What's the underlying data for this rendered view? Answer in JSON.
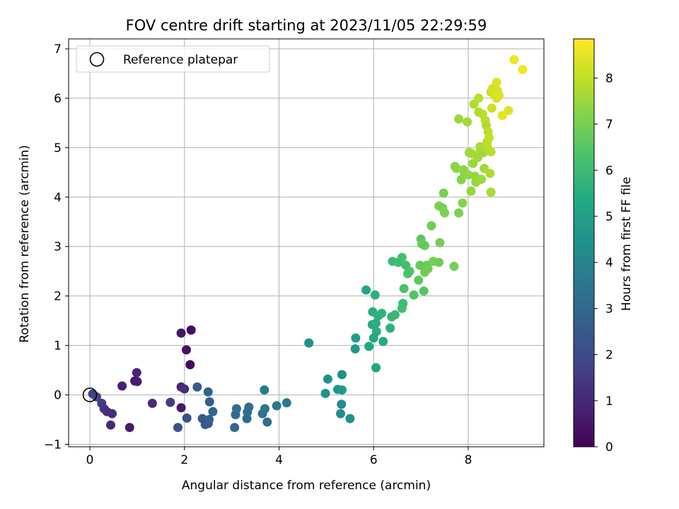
{
  "chart_data": {
    "type": "scatter",
    "title": "FOV centre drift starting at 2023/11/05 22:29:59",
    "xlabel": "Angular distance from reference (arcmin)",
    "ylabel": "Rotation from reference (arcmin)",
    "xlim": [
      -0.45,
      9.6
    ],
    "ylim": [
      -1.05,
      7.2
    ],
    "xticks": [
      0,
      2,
      4,
      6,
      8
    ],
    "yticks": [
      -1,
      0,
      1,
      2,
      3,
      4,
      5,
      6,
      7
    ],
    "grid": true,
    "legend": {
      "position": "top-left",
      "entries": [
        {
          "label": "Reference platepar",
          "marker": "open-circle"
        }
      ]
    },
    "reference_point": {
      "x": 0,
      "y": 0
    },
    "colorbar": {
      "label": "Hours from first FF file",
      "colormap": "viridis",
      "range": [
        0,
        8.85
      ],
      "ticks": [
        0,
        1,
        2,
        3,
        4,
        5,
        6,
        7,
        8
      ]
    },
    "points": [
      {
        "x": 0.06,
        "y": 0.02,
        "c": 1.6
      },
      {
        "x": 0.14,
        "y": -0.04,
        "c": 1.8
      },
      {
        "x": 0.25,
        "y": -0.17,
        "c": 1.5
      },
      {
        "x": 0.3,
        "y": -0.28,
        "c": 1.4
      },
      {
        "x": 0.36,
        "y": -0.34,
        "c": 1.2
      },
      {
        "x": 0.47,
        "y": -0.38,
        "c": 1.1
      },
      {
        "x": 0.44,
        "y": -0.61,
        "c": 1.0
      },
      {
        "x": 0.68,
        "y": 0.18,
        "c": 0.8
      },
      {
        "x": 0.95,
        "y": 0.28,
        "c": 0.6
      },
      {
        "x": 1.0,
        "y": 0.27,
        "c": 0.7
      },
      {
        "x": 0.99,
        "y": 0.45,
        "c": 0.9
      },
      {
        "x": 0.84,
        "y": -0.66,
        "c": 0.7
      },
      {
        "x": 1.32,
        "y": -0.17,
        "c": 1.1
      },
      {
        "x": 1.7,
        "y": -0.15,
        "c": 1.6
      },
      {
        "x": 1.93,
        "y": -0.26,
        "c": 0.6
      },
      {
        "x": 1.93,
        "y": 0.16,
        "c": 0.9
      },
      {
        "x": 2.0,
        "y": 0.12,
        "c": 1.2
      },
      {
        "x": 1.93,
        "y": 1.25,
        "c": 0.5
      },
      {
        "x": 2.14,
        "y": 1.31,
        "c": 0.3
      },
      {
        "x": 2.04,
        "y": 0.91,
        "c": 0.4
      },
      {
        "x": 2.12,
        "y": 0.61,
        "c": 0.2
      },
      {
        "x": 1.86,
        "y": -0.66,
        "c": 2.2
      },
      {
        "x": 2.05,
        "y": -0.47,
        "c": 2.3
      },
      {
        "x": 2.27,
        "y": 0.16,
        "c": 2.6
      },
      {
        "x": 2.38,
        "y": -0.48,
        "c": 2.4
      },
      {
        "x": 2.46,
        "y": -0.52,
        "c": 2.5
      },
      {
        "x": 2.44,
        "y": -0.6,
        "c": 2.3
      },
      {
        "x": 2.5,
        "y": -0.58,
        "c": 2.4
      },
      {
        "x": 2.52,
        "y": -0.5,
        "c": 2.7
      },
      {
        "x": 2.5,
        "y": 0.06,
        "c": 2.8
      },
      {
        "x": 2.53,
        "y": -0.14,
        "c": 2.6
      },
      {
        "x": 2.6,
        "y": -0.34,
        "c": 2.9
      },
      {
        "x": 3.06,
        "y": -0.66,
        "c": 2.9
      },
      {
        "x": 3.08,
        "y": -0.4,
        "c": 3.0
      },
      {
        "x": 3.1,
        "y": -0.28,
        "c": 3.2
      },
      {
        "x": 3.32,
        "y": -0.48,
        "c": 3.0
      },
      {
        "x": 3.33,
        "y": -0.35,
        "c": 3.3
      },
      {
        "x": 3.36,
        "y": -0.25,
        "c": 3.1
      },
      {
        "x": 3.65,
        "y": -0.38,
        "c": 3.4
      },
      {
        "x": 3.7,
        "y": -0.28,
        "c": 3.5
      },
      {
        "x": 3.75,
        "y": -0.55,
        "c": 3.2
      },
      {
        "x": 3.69,
        "y": 0.1,
        "c": 3.6
      },
      {
        "x": 3.95,
        "y": -0.22,
        "c": 3.5
      },
      {
        "x": 4.16,
        "y": -0.16,
        "c": 3.6
      },
      {
        "x": 4.63,
        "y": 1.05,
        "c": 4.4
      },
      {
        "x": 4.98,
        "y": 0.03,
        "c": 4.5
      },
      {
        "x": 5.03,
        "y": 0.32,
        "c": 4.4
      },
      {
        "x": 5.24,
        "y": 0.11,
        "c": 4.6
      },
      {
        "x": 5.33,
        "y": 0.1,
        "c": 4.7
      },
      {
        "x": 5.33,
        "y": 0.41,
        "c": 4.4
      },
      {
        "x": 5.32,
        "y": -0.19,
        "c": 4.2
      },
      {
        "x": 5.3,
        "y": -0.38,
        "c": 4.3
      },
      {
        "x": 5.5,
        "y": -0.48,
        "c": 4.5
      },
      {
        "x": 5.61,
        "y": 0.93,
        "c": 4.8
      },
      {
        "x": 5.62,
        "y": 1.15,
        "c": 4.9
      },
      {
        "x": 5.84,
        "y": 2.12,
        "c": 5.2
      },
      {
        "x": 5.9,
        "y": 0.98,
        "c": 5.3
      },
      {
        "x": 5.97,
        "y": 1.42,
        "c": 5.4
      },
      {
        "x": 5.98,
        "y": 1.68,
        "c": 5.5
      },
      {
        "x": 6.03,
        "y": 2.02,
        "c": 5.6
      },
      {
        "x": 6.05,
        "y": 1.45,
        "c": 5.6
      },
      {
        "x": 6.06,
        "y": 1.28,
        "c": 5.5
      },
      {
        "x": 6.05,
        "y": 0.55,
        "c": 5.2
      },
      {
        "x": 6.0,
        "y": 1.15,
        "c": 5.3
      },
      {
        "x": 6.1,
        "y": 1.6,
        "c": 5.6
      },
      {
        "x": 6.17,
        "y": 1.65,
        "c": 5.7
      },
      {
        "x": 6.2,
        "y": 1.08,
        "c": 5.4
      },
      {
        "x": 6.35,
        "y": 1.35,
        "c": 5.6
      },
      {
        "x": 6.38,
        "y": 1.58,
        "c": 5.8
      },
      {
        "x": 6.4,
        "y": 2.7,
        "c": 6.0
      },
      {
        "x": 6.45,
        "y": 1.62,
        "c": 5.9
      },
      {
        "x": 6.52,
        "y": 2.68,
        "c": 6.1
      },
      {
        "x": 6.6,
        "y": 2.78,
        "c": 6.2
      },
      {
        "x": 6.62,
        "y": 1.85,
        "c": 6.0
      },
      {
        "x": 6.6,
        "y": 1.75,
        "c": 6.1
      },
      {
        "x": 6.64,
        "y": 2.15,
        "c": 6.3
      },
      {
        "x": 6.68,
        "y": 2.62,
        "c": 6.2
      },
      {
        "x": 6.72,
        "y": 2.45,
        "c": 6.4
      },
      {
        "x": 6.76,
        "y": 2.5,
        "c": 6.3
      },
      {
        "x": 6.85,
        "y": 2.02,
        "c": 6.4
      },
      {
        "x": 6.95,
        "y": 2.32,
        "c": 6.6
      },
      {
        "x": 6.98,
        "y": 2.62,
        "c": 6.7
      },
      {
        "x": 7.0,
        "y": 3.15,
        "c": 6.6
      },
      {
        "x": 7.02,
        "y": 3.05,
        "c": 6.8
      },
      {
        "x": 7.06,
        "y": 2.1,
        "c": 6.5
      },
      {
        "x": 7.08,
        "y": 2.48,
        "c": 6.9
      },
      {
        "x": 7.08,
        "y": 3.02,
        "c": 6.7
      },
      {
        "x": 7.12,
        "y": 2.62,
        "c": 6.8
      },
      {
        "x": 7.15,
        "y": 2.55,
        "c": 6.9
      },
      {
        "x": 7.22,
        "y": 3.42,
        "c": 6.9
      },
      {
        "x": 7.26,
        "y": 2.7,
        "c": 7.0
      },
      {
        "x": 7.38,
        "y": 2.68,
        "c": 6.9
      },
      {
        "x": 7.4,
        "y": 3.08,
        "c": 7.0
      },
      {
        "x": 7.38,
        "y": 3.82,
        "c": 7.1
      },
      {
        "x": 7.46,
        "y": 3.78,
        "c": 7.0
      },
      {
        "x": 7.5,
        "y": 3.68,
        "c": 7.1
      },
      {
        "x": 7.48,
        "y": 4.08,
        "c": 7.0
      },
      {
        "x": 7.7,
        "y": 2.6,
        "c": 7.0
      },
      {
        "x": 7.72,
        "y": 4.62,
        "c": 7.3
      },
      {
        "x": 7.75,
        "y": 4.58,
        "c": 7.3
      },
      {
        "x": 7.8,
        "y": 3.68,
        "c": 7.1
      },
      {
        "x": 7.8,
        "y": 5.58,
        "c": 7.5
      },
      {
        "x": 7.85,
        "y": 4.35,
        "c": 7.2
      },
      {
        "x": 7.88,
        "y": 3.88,
        "c": 7.2
      },
      {
        "x": 7.9,
        "y": 4.55,
        "c": 7.4
      },
      {
        "x": 7.92,
        "y": 4.48,
        "c": 7.3
      },
      {
        "x": 7.98,
        "y": 5.52,
        "c": 7.6
      },
      {
        "x": 8.0,
        "y": 4.45,
        "c": 7.4
      },
      {
        "x": 8.02,
        "y": 4.9,
        "c": 7.6
      },
      {
        "x": 8.06,
        "y": 4.12,
        "c": 7.4
      },
      {
        "x": 8.08,
        "y": 4.88,
        "c": 7.6
      },
      {
        "x": 8.1,
        "y": 4.68,
        "c": 7.5
      },
      {
        "x": 8.12,
        "y": 5.88,
        "c": 7.8
      },
      {
        "x": 8.14,
        "y": 4.42,
        "c": 7.4
      },
      {
        "x": 8.16,
        "y": 4.3,
        "c": 7.5
      },
      {
        "x": 8.2,
        "y": 4.8,
        "c": 7.6
      },
      {
        "x": 8.22,
        "y": 5.72,
        "c": 7.8
      },
      {
        "x": 8.22,
        "y": 6.0,
        "c": 7.9
      },
      {
        "x": 8.25,
        "y": 5.02,
        "c": 7.7
      },
      {
        "x": 8.26,
        "y": 4.95,
        "c": 7.7
      },
      {
        "x": 8.28,
        "y": 4.36,
        "c": 7.5
      },
      {
        "x": 8.3,
        "y": 5.68,
        "c": 7.9
      },
      {
        "x": 8.32,
        "y": 4.9,
        "c": 7.6
      },
      {
        "x": 8.34,
        "y": 4.58,
        "c": 7.6
      },
      {
        "x": 8.36,
        "y": 5.55,
        "c": 7.9
      },
      {
        "x": 8.38,
        "y": 5.45,
        "c": 7.8
      },
      {
        "x": 8.4,
        "y": 5.12,
        "c": 7.8
      },
      {
        "x": 8.4,
        "y": 5.02,
        "c": 7.9
      },
      {
        "x": 8.42,
        "y": 5.32,
        "c": 7.9
      },
      {
        "x": 8.44,
        "y": 5.2,
        "c": 8.0
      },
      {
        "x": 8.46,
        "y": 4.48,
        "c": 7.8
      },
      {
        "x": 8.48,
        "y": 4.1,
        "c": 7.7
      },
      {
        "x": 8.48,
        "y": 4.92,
        "c": 7.9
      },
      {
        "x": 8.48,
        "y": 6.12,
        "c": 8.1
      },
      {
        "x": 8.5,
        "y": 5.8,
        "c": 8.2
      },
      {
        "x": 8.52,
        "y": 6.2,
        "c": 8.2
      },
      {
        "x": 8.55,
        "y": 6.08,
        "c": 8.3
      },
      {
        "x": 8.58,
        "y": 6.08,
        "c": 8.3
      },
      {
        "x": 8.6,
        "y": 6.0,
        "c": 8.3
      },
      {
        "x": 8.6,
        "y": 6.32,
        "c": 8.4
      },
      {
        "x": 8.62,
        "y": 6.15,
        "c": 8.3
      },
      {
        "x": 8.65,
        "y": 6.05,
        "c": 8.4
      },
      {
        "x": 8.72,
        "y": 5.65,
        "c": 8.5
      },
      {
        "x": 8.85,
        "y": 5.75,
        "c": 8.4
      },
      {
        "x": 8.97,
        "y": 6.78,
        "c": 8.6
      },
      {
        "x": 9.15,
        "y": 6.58,
        "c": 8.7
      }
    ]
  }
}
